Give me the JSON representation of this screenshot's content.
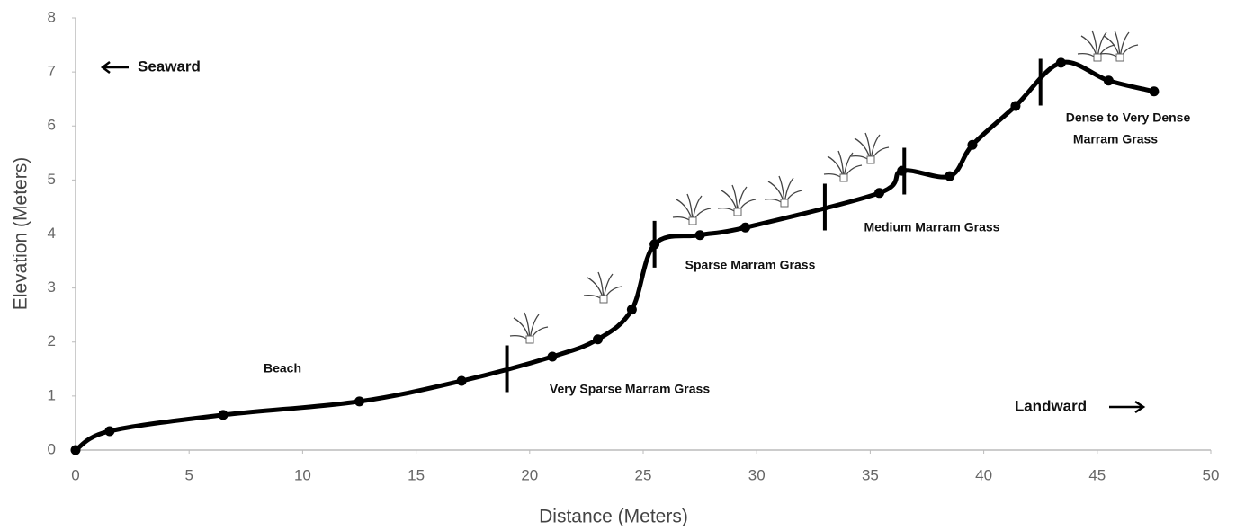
{
  "chart_data": {
    "type": "line",
    "x_label": "Distance (Meters)",
    "y_label": "Elevation (Meters)",
    "x": [
      0,
      1.5,
      6.5,
      12.5,
      17,
      21,
      23,
      24.5,
      25.5,
      27.5,
      29.5,
      35.4,
      36.4,
      38.5,
      39.5,
      41.4,
      43.4,
      45.5,
      47.5
    ],
    "series": [
      {
        "color": "#000000",
        "values": [
          0,
          0.35,
          0.65,
          0.9,
          1.28,
          1.73,
          2.05,
          2.6,
          3.81,
          3.98,
          4.12,
          4.76,
          5.17,
          5.07,
          5.65,
          6.37,
          7.17,
          6.84,
          6.64
        ]
      }
    ],
    "zone_boundaries": [
      19,
      25.5,
      33,
      36.5,
      42.5
    ],
    "annotations": {
      "seaward": "Seaward",
      "landward": "Landward",
      "beach": "Beach",
      "very_sparse": "Very Sparse Marram Grass",
      "sparse": "Sparse Marram Grass",
      "medium": "Medium Marram Grass",
      "dense": [
        "Dense to Very Dense",
        "Marram Grass"
      ]
    },
    "xlim": [
      0,
      50
    ],
    "ylim": [
      0,
      8
    ],
    "xticks": [
      0,
      5,
      10,
      15,
      20,
      25,
      30,
      35,
      40,
      45,
      50
    ],
    "yticks": [
      0,
      1,
      2,
      3,
      4,
      5,
      6,
      7,
      8
    ],
    "grid": false
  }
}
